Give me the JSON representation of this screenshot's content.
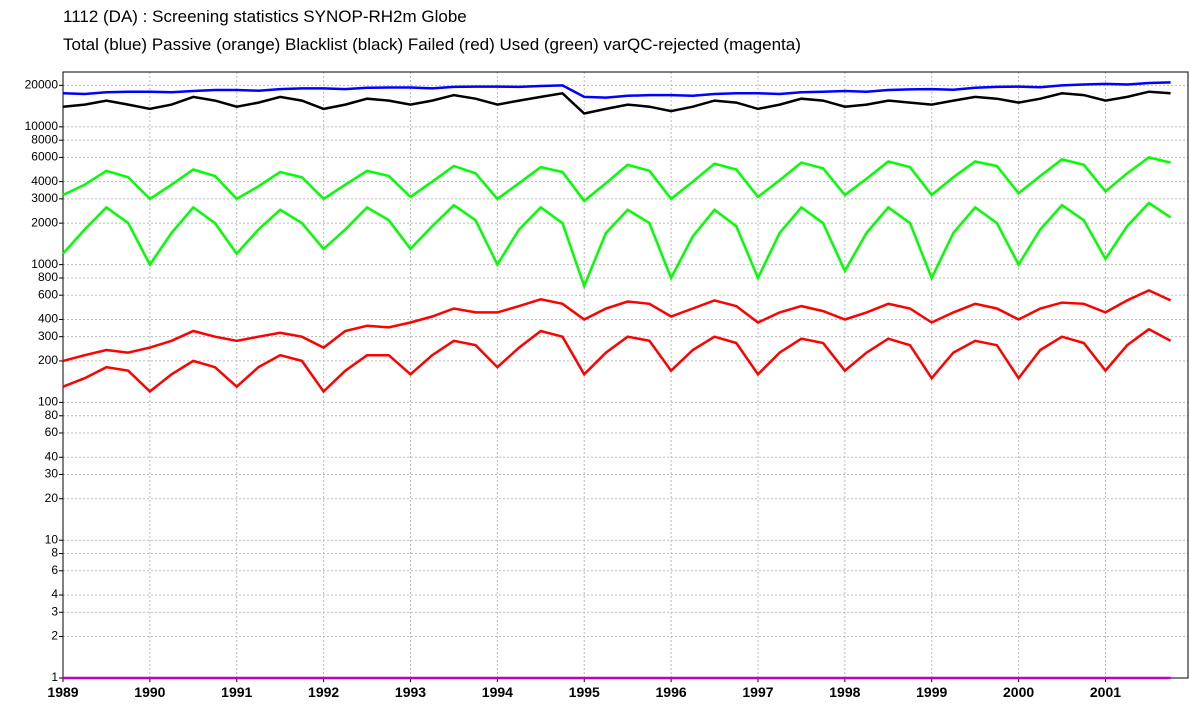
{
  "chart_data": {
    "type": "line",
    "title": "1112 (DA)  : Screening statistics  SYNOP-RH2m  Globe",
    "subtitle": "Total (blue) Passive (orange) Blacklist (black) Failed (red) Used (green) varQC-rejected (magenta)",
    "log_y": true,
    "grid": true,
    "xlim": [
      1989,
      2001.95
    ],
    "xticks": [
      1989,
      1990,
      1991,
      1992,
      1993,
      1994,
      1995,
      1996,
      1997,
      1998,
      1999,
      2000,
      2001
    ],
    "ylim": [
      1,
      25000
    ],
    "yticks": [
      1,
      2,
      3,
      4,
      6,
      8,
      10,
      20,
      30,
      40,
      60,
      80,
      100,
      200,
      300,
      400,
      600,
      800,
      1000,
      2000,
      3000,
      4000,
      6000,
      8000,
      10000,
      20000
    ],
    "x": [
      1989,
      1989.25,
      1989.5,
      1989.75,
      1990,
      1990.25,
      1990.5,
      1990.75,
      1991,
      1991.25,
      1991.5,
      1991.75,
      1992,
      1992.25,
      1992.5,
      1992.75,
      1993,
      1993.25,
      1993.5,
      1993.75,
      1994,
      1994.25,
      1994.5,
      1994.75,
      1995,
      1995.25,
      1995.5,
      1995.75,
      1996,
      1996.25,
      1996.5,
      1996.75,
      1997,
      1997.25,
      1997.5,
      1997.75,
      1998,
      1998.25,
      1998.5,
      1998.75,
      1999,
      1999.25,
      1999.5,
      1999.75,
      2000,
      2000.25,
      2000.5,
      2000.75,
      2001,
      2001.25,
      2001.5,
      2001.75
    ],
    "series": [
      {
        "color": "#0000ff",
        "values": [
          17500,
          17300,
          17800,
          18000,
          18000,
          17800,
          18200,
          18500,
          18500,
          18300,
          18800,
          19000,
          19000,
          18800,
          19200,
          19300,
          19300,
          19000,
          19500,
          19600,
          19600,
          19500,
          19800,
          20000,
          16500,
          16300,
          16800,
          17000,
          17000,
          16800,
          17300,
          17500,
          17500,
          17300,
          17800,
          18000,
          18200,
          18000,
          18500,
          18700,
          18800,
          18600,
          19200,
          19500,
          19600,
          19400,
          20000,
          20300,
          20500,
          20300,
          20800,
          21000
        ]
      },
      {
        "color": "#000000",
        "values": [
          14000,
          14500,
          15500,
          14500,
          13500,
          14500,
          16500,
          15500,
          14000,
          15000,
          16500,
          15500,
          13500,
          14500,
          16000,
          15500,
          14500,
          15500,
          17000,
          16000,
          14500,
          15500,
          16500,
          17500,
          12500,
          13500,
          14500,
          14000,
          13000,
          14000,
          15500,
          15000,
          13500,
          14500,
          16000,
          15500,
          14000,
          14500,
          15500,
          15000,
          14500,
          15500,
          16500,
          16000,
          15000,
          16000,
          17500,
          17000,
          15500,
          16500,
          18000,
          17500
        ]
      },
      {
        "color": "#00ff00",
        "values": [
          3200,
          3800,
          4800,
          4300,
          3000,
          3800,
          4900,
          4400,
          3000,
          3700,
          4700,
          4300,
          3000,
          3800,
          4800,
          4400,
          3100,
          4000,
          5200,
          4600,
          3000,
          3900,
          5100,
          4700,
          2900,
          3900,
          5300,
          4800,
          3000,
          4000,
          5400,
          4900,
          3100,
          4100,
          5500,
          5000,
          3200,
          4200,
          5600,
          5100,
          3200,
          4300,
          5600,
          5200,
          3300,
          4400,
          5800,
          5300,
          3400,
          4600,
          6000,
          5500
        ]
      },
      {
        "color": "#00ff00",
        "values": [
          1200,
          1800,
          2600,
          2000,
          1000,
          1700,
          2600,
          2000,
          1200,
          1800,
          2500,
          2000,
          1300,
          1800,
          2600,
          2100,
          1300,
          1900,
          2700,
          2100,
          1000,
          1800,
          2600,
          2000,
          700,
          1700,
          2500,
          2000,
          800,
          1600,
          2500,
          1900,
          800,
          1700,
          2600,
          2000,
          900,
          1700,
          2600,
          2000,
          800,
          1700,
          2600,
          2000,
          1000,
          1800,
          2700,
          2100,
          1100,
          1900,
          2800,
          2200
        ]
      },
      {
        "color": "#ff0000",
        "values": [
          200,
          220,
          240,
          230,
          250,
          280,
          330,
          300,
          280,
          300,
          320,
          300,
          250,
          330,
          360,
          350,
          380,
          420,
          480,
          450,
          450,
          500,
          560,
          520,
          400,
          480,
          540,
          520,
          420,
          480,
          550,
          500,
          380,
          450,
          500,
          460,
          400,
          450,
          520,
          480,
          380,
          450,
          520,
          480,
          400,
          480,
          530,
          520,
          450,
          550,
          650,
          550
        ]
      },
      {
        "color": "#ff0000",
        "values": [
          130,
          150,
          180,
          170,
          120,
          160,
          200,
          180,
          130,
          180,
          220,
          200,
          120,
          170,
          220,
          220,
          160,
          220,
          280,
          260,
          180,
          250,
          330,
          300,
          160,
          230,
          300,
          280,
          170,
          240,
          300,
          270,
          160,
          230,
          290,
          270,
          170,
          230,
          290,
          260,
          150,
          230,
          280,
          260,
          150,
          240,
          300,
          270,
          170,
          260,
          340,
          280
        ]
      },
      {
        "color": "#c000c0",
        "values": [
          1,
          1,
          1,
          1,
          1,
          1,
          1,
          1,
          1,
          1,
          1,
          1,
          1,
          1,
          1,
          1,
          1,
          1,
          1,
          1,
          1,
          1,
          1,
          1,
          1,
          1,
          1,
          1,
          1,
          1,
          1,
          1,
          1,
          1,
          1,
          1,
          1,
          1,
          1,
          1,
          1,
          1,
          1,
          1,
          1,
          1,
          1,
          1,
          1,
          1,
          1,
          1
        ]
      }
    ]
  }
}
